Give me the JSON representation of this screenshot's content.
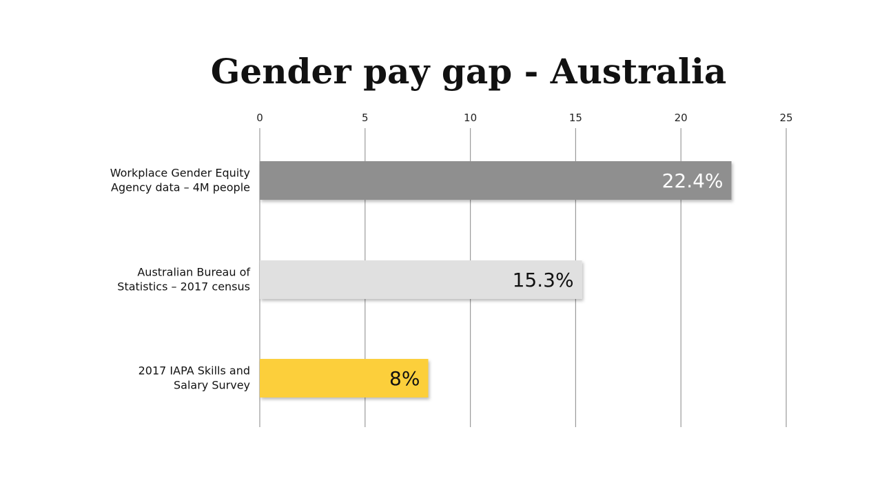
{
  "chart_data": {
    "type": "bar",
    "orientation": "horizontal",
    "title": "Gender pay gap - Australia",
    "xlabel": "",
    "ylabel": "",
    "xlim": [
      0,
      25
    ],
    "ticks": [
      0,
      5,
      10,
      15,
      20,
      25
    ],
    "tick_labels": [
      "0",
      "5",
      "10",
      "15",
      "20",
      "25"
    ],
    "grid": true,
    "axis_position": "top",
    "categories": [
      [
        "Workplace Gender Equity",
        "Agency data – 4M people"
      ],
      [
        "Australian Bureau of",
        "Statistics – 2017 census"
      ],
      [
        "2017 IAPA Skills and",
        "Salary Survey"
      ]
    ],
    "values": [
      22.4,
      15.3,
      8
    ],
    "data_labels": [
      "22.4%",
      "15.3%",
      "8%"
    ],
    "colors": [
      "#8f8f8f",
      "#e0e0e0",
      "#fccf3a"
    ],
    "label_colors": [
      "#ffffff",
      "#111111",
      "#111111"
    ]
  }
}
